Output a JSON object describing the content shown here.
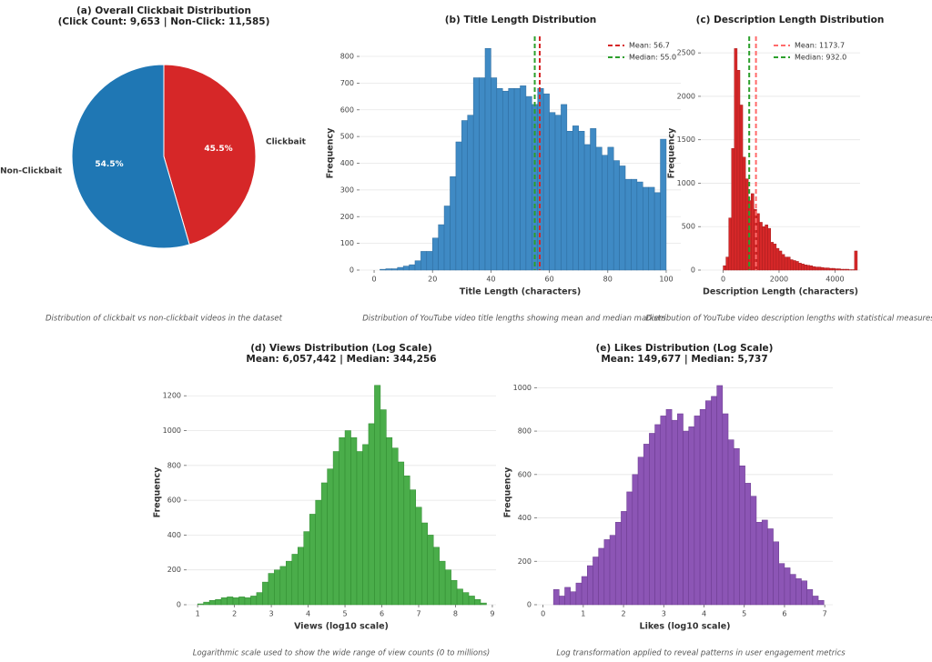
{
  "chart_data": [
    {
      "type": "pie",
      "title": "(a) Overall Clickbait Distribution",
      "subtitle": "(Click Count: 9,653 | Non-Click: 11,585)",
      "categories": [
        "Clickbait",
        "Non-Clickbait"
      ],
      "values": [
        45.5,
        54.5
      ],
      "value_labels": [
        "45.5%",
        "54.5%"
      ],
      "colors": [
        "#d62728",
        "#1f77b4"
      ],
      "caption": "Distribution of clickbait vs non-clickbait videos in the dataset"
    },
    {
      "type": "histogram",
      "title": "(b) Title Length Distribution",
      "xlabel": "Title Length (characters)",
      "ylabel": "Frequency",
      "bins": [
        2,
        4,
        6,
        8,
        10,
        12,
        14,
        16,
        18,
        20,
        22,
        24,
        26,
        28,
        30,
        32,
        34,
        36,
        38,
        40,
        42,
        44,
        46,
        48,
        50,
        52,
        54,
        56,
        58,
        60,
        62,
        64,
        66,
        68,
        70,
        72,
        74,
        76,
        78,
        80,
        82,
        84,
        86,
        88,
        90,
        92,
        94,
        96,
        98,
        100
      ],
      "values": [
        3,
        5,
        5,
        10,
        15,
        20,
        35,
        70,
        70,
        120,
        170,
        240,
        350,
        480,
        560,
        580,
        720,
        720,
        830,
        720,
        680,
        670,
        680,
        680,
        690,
        650,
        620,
        680,
        660,
        590,
        580,
        620,
        520,
        540,
        520,
        470,
        530,
        460,
        430,
        460,
        410,
        390,
        340,
        340,
        330,
        310,
        310,
        290,
        490
      ],
      "color": "#3f8ac4",
      "edgecolor": "#2c6a9c",
      "xlim": [
        -5,
        105
      ],
      "ylim": [
        0,
        875
      ],
      "xticks": [
        0,
        20,
        40,
        60,
        80,
        100
      ],
      "yticks": [
        0,
        100,
        200,
        300,
        400,
        500,
        600,
        700,
        800
      ],
      "grid": "y",
      "reference_lines": [
        {
          "name": "Mean: 56.7",
          "value": 56.7,
          "color": "#d62728"
        },
        {
          "name": "Median: 55.0",
          "value": 55.0,
          "color": "#2ca02c"
        }
      ],
      "legend": "upper right",
      "caption": "Distribution of YouTube video title lengths showing mean and median markers"
    },
    {
      "type": "histogram",
      "title": "(c) Description Length Distribution",
      "xlabel": "Description Length (characters)",
      "ylabel": "Frequency",
      "bins": [
        0,
        100,
        200,
        300,
        400,
        500,
        600,
        700,
        800,
        900,
        1000,
        1100,
        1200,
        1300,
        1400,
        1500,
        1600,
        1700,
        1800,
        1900,
        2000,
        2100,
        2200,
        2300,
        2400,
        2500,
        2600,
        2700,
        2800,
        2900,
        3000,
        3100,
        3200,
        3300,
        3400,
        3500,
        3600,
        3700,
        3800,
        3900,
        4000,
        4100,
        4200,
        4300,
        4400,
        4500,
        4600,
        4700,
        4800
      ],
      "values": [
        50,
        150,
        600,
        1400,
        2550,
        2300,
        1900,
        1300,
        1050,
        800,
        880,
        700,
        650,
        550,
        500,
        520,
        480,
        320,
        300,
        250,
        220,
        180,
        150,
        150,
        120,
        110,
        100,
        80,
        70,
        60,
        55,
        50,
        40,
        35,
        35,
        30,
        25,
        25,
        20,
        20,
        15,
        15,
        10,
        10,
        10,
        5,
        5,
        220
      ],
      "color": "#d62728",
      "edgecolor": "#a81d1e",
      "xlim": [
        -800,
        4900
      ],
      "ylim": [
        0,
        2690
      ],
      "xticks": [
        0,
        2000,
        4000
      ],
      "yticks": [
        0,
        500,
        1000,
        1500,
        2000,
        2500
      ],
      "grid": "y",
      "reference_lines": [
        {
          "name": "Mean: 1173.7",
          "value": 1173.7,
          "color": "#ff6b6b"
        },
        {
          "name": "Median: 932.0",
          "value": 932.0,
          "color": "#2ca02c"
        }
      ],
      "legend": "upper right",
      "caption": "Distribution of YouTube video description lengths with statistical measures"
    },
    {
      "type": "histogram",
      "title": "(d) Views Distribution (Log Scale)",
      "subtitle": "Mean: 6,057,442 | Median: 344,256",
      "xlabel": "Views (log10 scale)",
      "ylabel": "Frequency",
      "bins": [
        1,
        1.16,
        1.32,
        1.48,
        1.64,
        1.8,
        1.96,
        2.12,
        2.28,
        2.44,
        2.6,
        2.76,
        2.92,
        3.08,
        3.24,
        3.4,
        3.56,
        3.72,
        3.88,
        4.04,
        4.2,
        4.36,
        4.52,
        4.68,
        4.84,
        5,
        5.16,
        5.32,
        5.48,
        5.64,
        5.8,
        5.96,
        6.12,
        6.28,
        6.44,
        6.6,
        6.76,
        6.92,
        7.08,
        7.24,
        7.4,
        7.56,
        7.72,
        7.88,
        8.04,
        8.2,
        8.36,
        8.52,
        8.68,
        8.84
      ],
      "values": [
        5,
        15,
        25,
        30,
        40,
        45,
        40,
        45,
        40,
        50,
        70,
        130,
        180,
        200,
        220,
        250,
        290,
        330,
        420,
        520,
        600,
        700,
        780,
        880,
        960,
        1000,
        960,
        880,
        920,
        1040,
        1260,
        1120,
        960,
        900,
        820,
        740,
        660,
        560,
        470,
        400,
        330,
        250,
        200,
        140,
        90,
        70,
        50,
        30,
        10
      ],
      "color": "#4aad4a",
      "edgecolor": "#2f8a2f",
      "xlim": [
        0.7,
        9.1
      ],
      "ylim": [
        0,
        1290
      ],
      "xticks": [
        1,
        2,
        3,
        4,
        5,
        6,
        7,
        8,
        9
      ],
      "yticks": [
        0,
        200,
        400,
        600,
        800,
        1000,
        1200
      ],
      "grid": "y",
      "caption": "Logarithmic scale used to show the wide range of view counts (0 to millions)"
    },
    {
      "type": "histogram",
      "title": "(e) Likes Distribution (Log Scale)",
      "subtitle": "Mean: 149,677 | Median: 5,737",
      "xlabel": "Likes (log10 scale)",
      "ylabel": "Frequency",
      "bins": [
        0.26,
        0.4,
        0.54,
        0.68,
        0.82,
        0.96,
        1.1,
        1.24,
        1.38,
        1.52,
        1.66,
        1.8,
        1.94,
        2.08,
        2.22,
        2.36,
        2.5,
        2.64,
        2.78,
        2.92,
        3.06,
        3.2,
        3.34,
        3.48,
        3.62,
        3.76,
        3.9,
        4.04,
        4.18,
        4.32,
        4.46,
        4.6,
        4.74,
        4.88,
        5.02,
        5.16,
        5.3,
        5.44,
        5.58,
        5.72,
        5.86,
        6,
        6.14,
        6.28,
        6.42,
        6.56,
        6.7,
        6.84,
        6.98
      ],
      "values": [
        70,
        40,
        80,
        60,
        100,
        130,
        180,
        220,
        260,
        300,
        320,
        380,
        430,
        520,
        600,
        680,
        740,
        790,
        830,
        870,
        900,
        850,
        880,
        800,
        820,
        870,
        900,
        940,
        960,
        1010,
        880,
        760,
        720,
        640,
        560,
        500,
        380,
        390,
        350,
        290,
        190,
        170,
        140,
        120,
        110,
        70,
        40,
        20
      ],
      "color": "#8c55b5",
      "edgecolor": "#6a3a8e",
      "xlim": [
        -0.15,
        7.2
      ],
      "ylim": [
        0,
        1035
      ],
      "xticks": [
        0,
        1,
        2,
        3,
        4,
        5,
        6,
        7
      ],
      "yticks": [
        0,
        200,
        400,
        600,
        800,
        1000
      ],
      "grid": "y",
      "caption": "Log transformation applied to reveal patterns in user engagement metrics"
    }
  ]
}
